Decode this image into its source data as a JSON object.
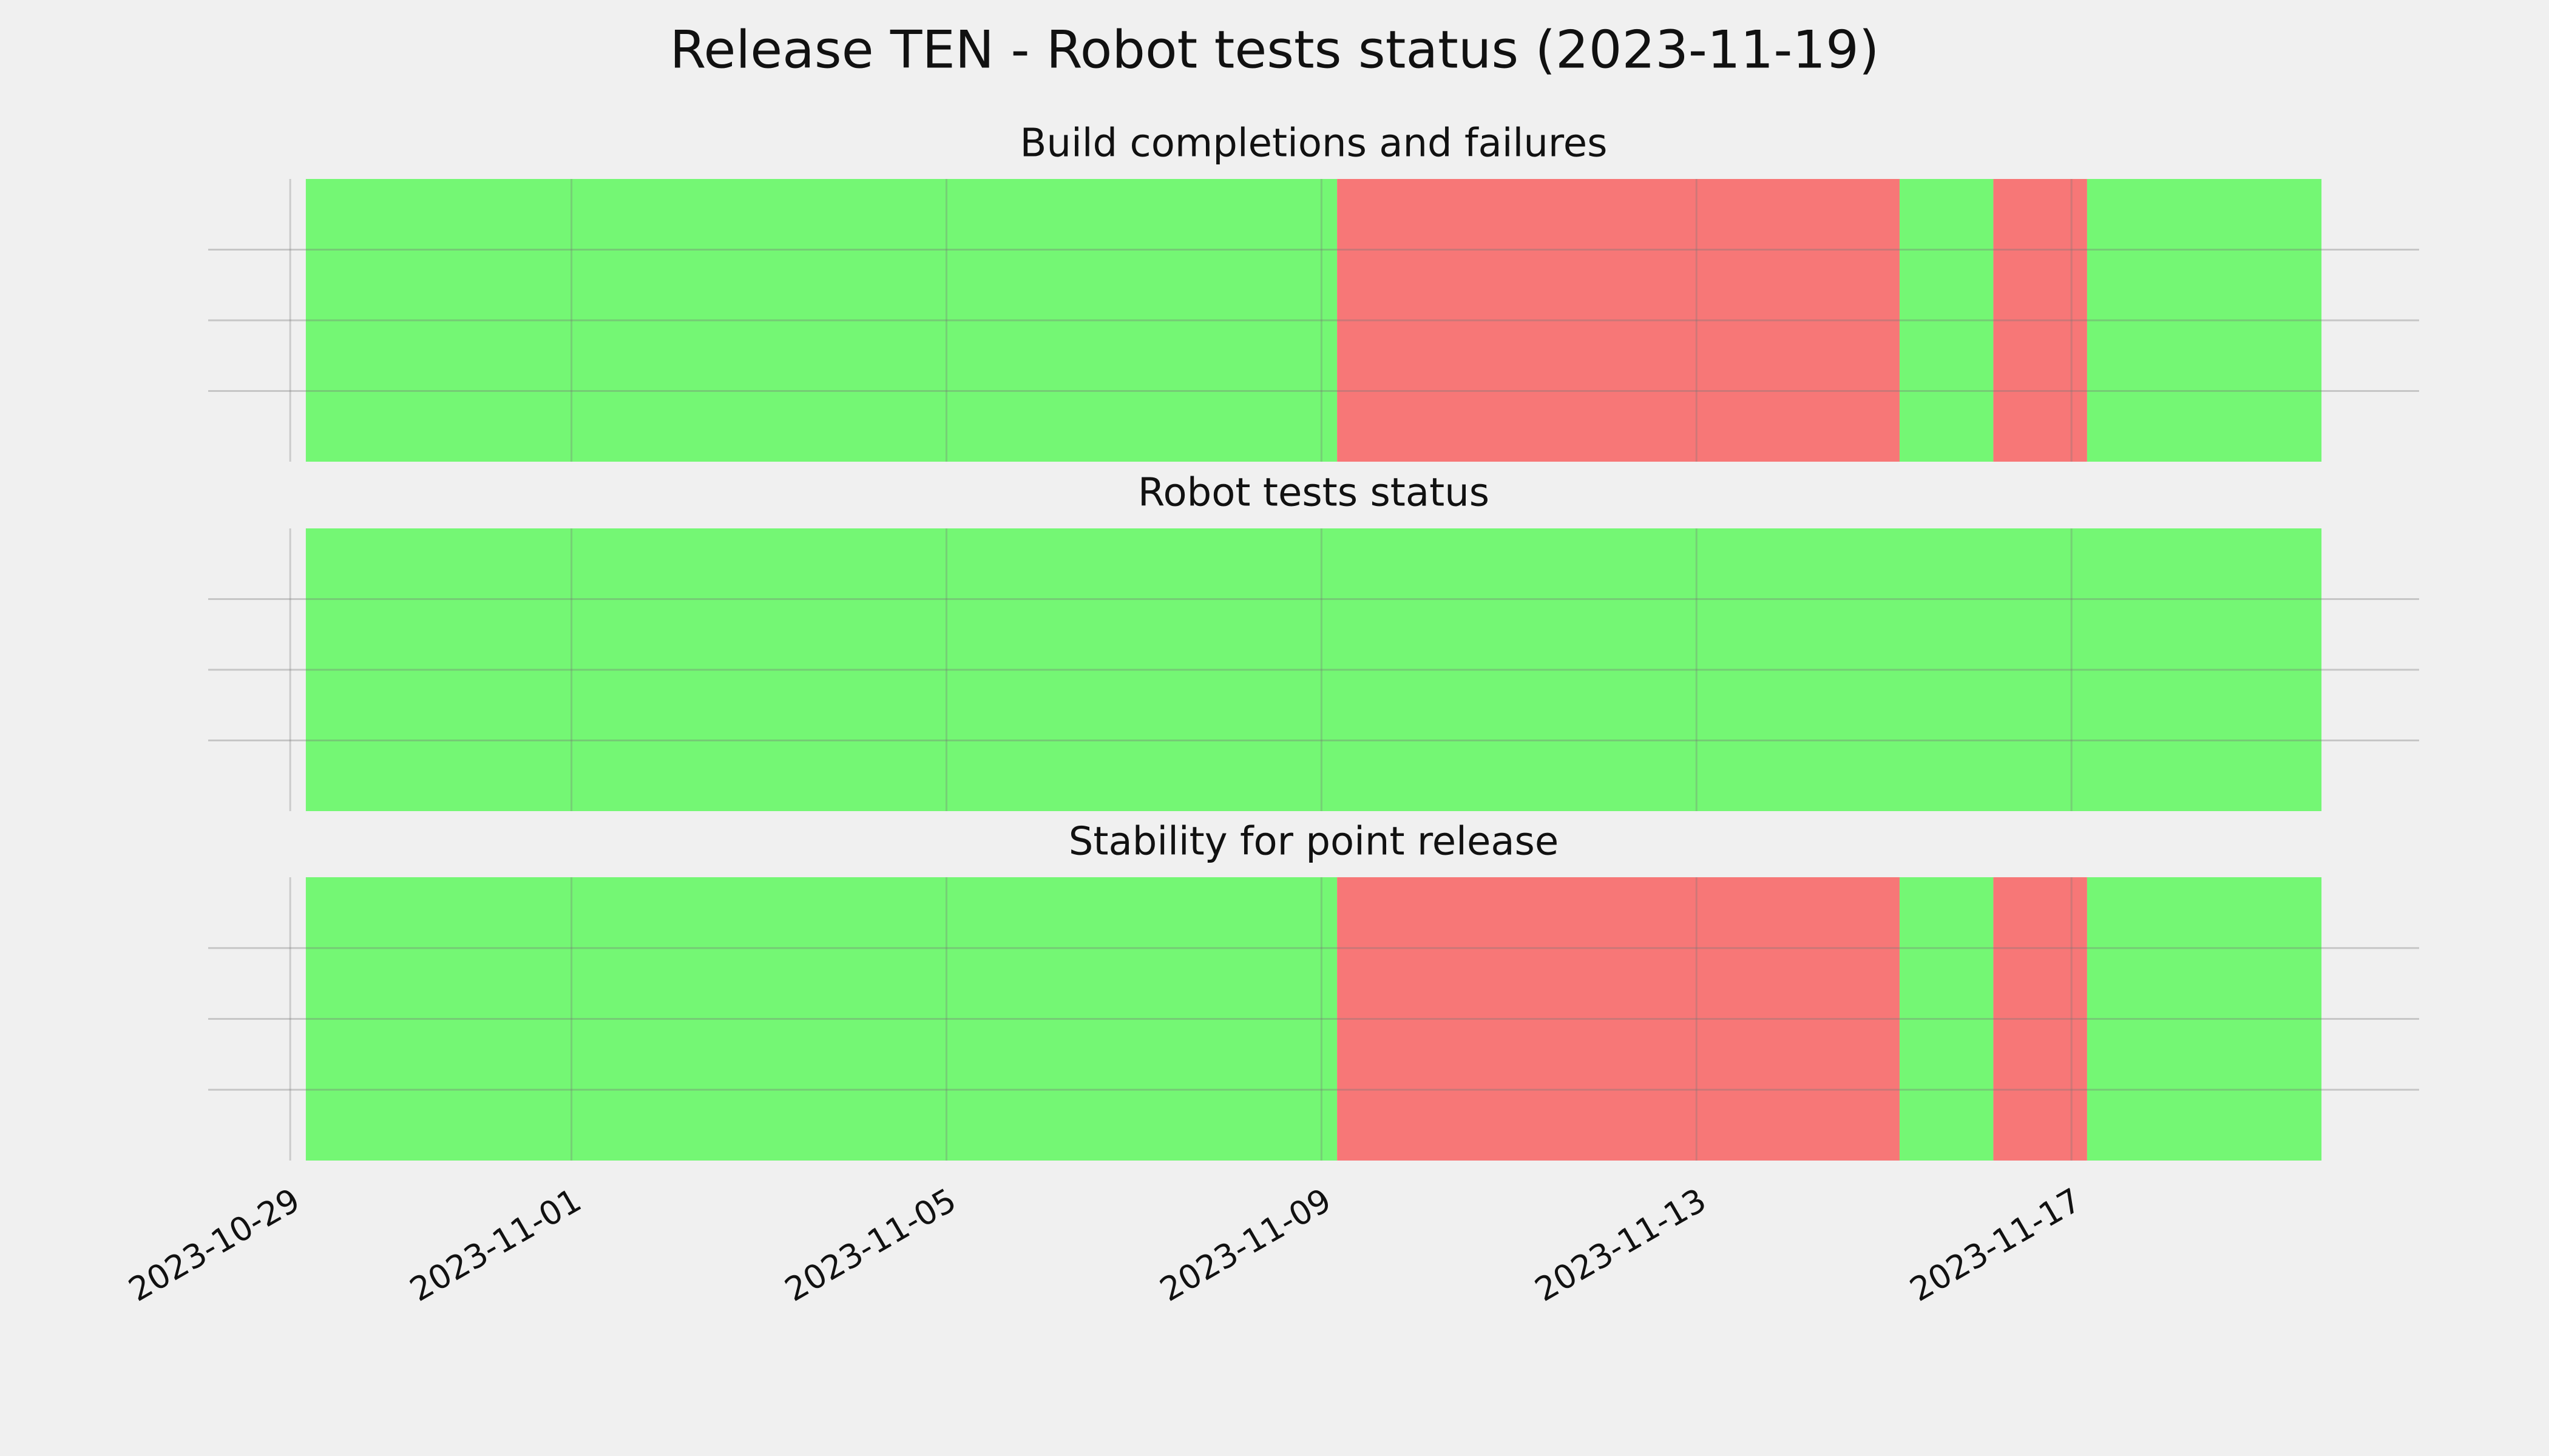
{
  "title": "Release TEN - Robot tests status (2023-11-19)",
  "xlim": [
    "2023-10-28T03:00",
    "2023-11-20T17:00"
  ],
  "xticks": [
    "2023-10-29",
    "2023-11-01",
    "2023-11-05",
    "2023-11-09",
    "2023-11-13",
    "2023-11-17"
  ],
  "grid": true,
  "chart_data": [
    {
      "type": "timeline",
      "title": "Build completions and failures",
      "bins": [
        "2023-10-29T04:00",
        "2023-11-09T04:00",
        "2023-11-15T04:00",
        "2023-11-16T04:00",
        "2023-11-17T04:00",
        "2023-11-19T16:00"
      ],
      "colors": [
        "#74f774",
        "#f77777",
        "#74f774",
        "#f77777",
        "#74f774"
      ]
    },
    {
      "type": "timeline",
      "title": "Robot tests status",
      "bins": [
        "2023-10-29T04:00",
        "2023-11-19T16:00"
      ],
      "colors": [
        "#74f774"
      ]
    },
    {
      "type": "timeline",
      "title": "Stability for point release",
      "bins": [
        "2023-10-29T04:00",
        "2023-11-09T04:00",
        "2023-11-15T04:00",
        "2023-11-16T04:00",
        "2023-11-17T04:00",
        "2023-11-19T16:00"
      ],
      "colors": [
        "#74f774",
        "#f77777",
        "#74f774",
        "#f77777",
        "#74f774"
      ]
    }
  ]
}
